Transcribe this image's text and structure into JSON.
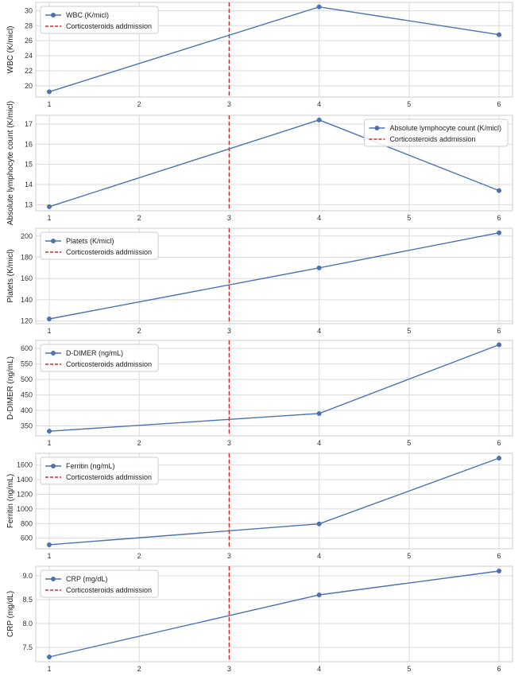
{
  "figure": {
    "marker_label": "Corticosteroids addmission",
    "marker_x": 3,
    "line_color": "#4c72b0",
    "marker_color": "#d62728",
    "grid_color": "#d9d9d9",
    "frame_color": "#cccccc",
    "background": "#ffffff"
  },
  "chart_data": [
    {
      "type": "line",
      "series": [
        {
          "name": "WBC (K/micl)",
          "x": [
            1,
            4,
            6
          ],
          "values": [
            19.2,
            30.5,
            26.8
          ]
        }
      ],
      "ylabel": "WBC (K/micl)",
      "xlim": [
        0.85,
        6.15
      ],
      "ylim": [
        18.5,
        31.1
      ],
      "xticks": [
        1,
        2,
        3,
        4,
        5,
        6
      ],
      "yticks": [
        20,
        22,
        24,
        26,
        28,
        30
      ],
      "grid": true,
      "legend": "top-left"
    },
    {
      "type": "line",
      "series": [
        {
          "name": "Absolute lymphocyte count (K/micl)",
          "x": [
            1,
            4,
            6
          ],
          "values": [
            12.9,
            17.2,
            13.7
          ]
        }
      ],
      "ylabel": "Absolute lymphocyte count (K/micl)",
      "xlim": [
        0.85,
        6.15
      ],
      "ylim": [
        12.7,
        17.43
      ],
      "xticks": [
        1,
        2,
        3,
        4,
        5,
        6
      ],
      "yticks": [
        13,
        14,
        15,
        16,
        17
      ],
      "grid": true,
      "legend": "top-right"
    },
    {
      "type": "line",
      "series": [
        {
          "name": "Platets  (K/micl)",
          "x": [
            1,
            4,
            6
          ],
          "values": [
            122,
            170,
            203
          ]
        }
      ],
      "ylabel": "Platets  (K/micl)",
      "xlim": [
        0.85,
        6.15
      ],
      "ylim": [
        117.5,
        207.3
      ],
      "xticks": [
        1,
        2,
        3,
        4,
        5,
        6
      ],
      "yticks": [
        120,
        140,
        160,
        180,
        200
      ],
      "grid": true,
      "legend": "top-left"
    },
    {
      "type": "line",
      "series": [
        {
          "name": "D-DIMER (ng/mL)",
          "x": [
            1,
            4,
            6
          ],
          "values": [
            333,
            390,
            612
          ]
        }
      ],
      "ylabel": "D-DIMER (ng/mL)",
      "xlim": [
        0.85,
        6.15
      ],
      "ylim": [
        318,
        626
      ],
      "xticks": [
        1,
        2,
        3,
        4,
        5,
        6
      ],
      "yticks": [
        350,
        400,
        450,
        500,
        550,
        600
      ],
      "grid": true,
      "legend": "top-left"
    },
    {
      "type": "line",
      "series": [
        {
          "name": "Ferritin (ng/mL)",
          "x": [
            1,
            4,
            6
          ],
          "values": [
            510,
            795,
            1695
          ]
        }
      ],
      "ylabel": "Ferritin (ng/mL)",
      "xlim": [
        0.85,
        6.15
      ],
      "ylim": [
        455,
        1760
      ],
      "xticks": [
        1,
        2,
        3,
        4,
        5,
        6
      ],
      "yticks": [
        600,
        800,
        1000,
        1200,
        1400,
        1600
      ],
      "grid": true,
      "legend": "top-left"
    },
    {
      "type": "line",
      "series": [
        {
          "name": "CRP (mg/dL)",
          "x": [
            1,
            4,
            6
          ],
          "values": [
            7.3,
            8.6,
            9.1
          ]
        }
      ],
      "ylabel": "CRP (mg/dL)",
      "xlim": [
        0.85,
        6.15
      ],
      "ylim": [
        7.2,
        9.2
      ],
      "xticks": [
        1,
        2,
        3,
        4,
        5,
        6
      ],
      "yticks": [
        7.5,
        8.0,
        8.5,
        9.0
      ],
      "grid": true,
      "legend": "top-left"
    }
  ]
}
